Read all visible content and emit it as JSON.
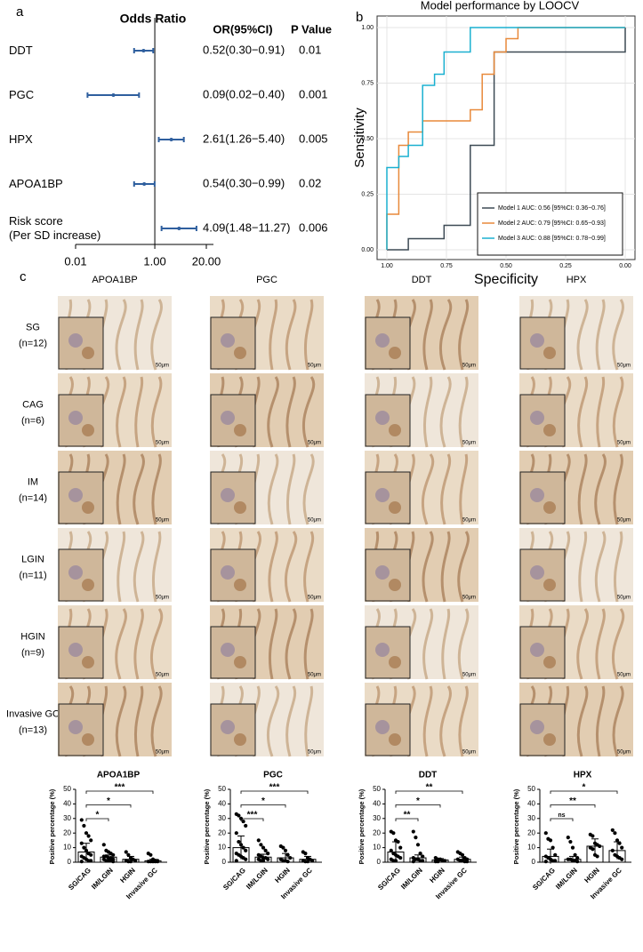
{
  "panel_labels": [
    "a",
    "b",
    "c"
  ],
  "chart_data": [
    {
      "type": "forest",
      "title": "Odds Ratio",
      "columns": [
        "OR(95%CI)",
        "P Value"
      ],
      "categories": [
        "DDT",
        "PGC",
        "HPX",
        "APOA1BP",
        "Risk score\n(Per SD increase)"
      ],
      "values": [
        0.52,
        0.09,
        2.61,
        0.54,
        4.09
      ],
      "ci_low": [
        0.3,
        0.02,
        1.26,
        0.3,
        1.48
      ],
      "ci_high": [
        0.91,
        0.4,
        5.4,
        0.99,
        11.27
      ],
      "value_labels": [
        "0.52(0.30−0.91)",
        "0.09(0.02−0.40)",
        "2.61(1.26−5.40)",
        "0.54(0.30−0.99)",
        "4.09(1.48−11.27)"
      ],
      "p_values": [
        0.01,
        0.001,
        0.005,
        0.02,
        0.006
      ],
      "log_scale": true,
      "reference_line": 1,
      "color": "#2f5f9e",
      "xlim": [
        0.01,
        20
      ],
      "xticks": [
        0.01,
        {
          "value": 1,
          "label": "1.00"
        },
        {
          "value": 20,
          "label": "20.00"
        }
      ]
    },
    {
      "type": "line",
      "title": "Model performance by LOOCV",
      "xlabel": "Specificity",
      "ylabel": "Sensitivity",
      "xlim": [
        1,
        0
      ],
      "ylim": [
        0,
        1
      ],
      "grid": true,
      "legend": "bottom-right",
      "xticks": [
        {
          "value": 1,
          "label": "1.00"
        },
        {
          "value": 0.75,
          "label": "0.75"
        },
        {
          "value": 0.5,
          "label": "0.50"
        },
        {
          "value": 0.25,
          "label": "0.25"
        },
        {
          "value": 0,
          "label": "0.00"
        }
      ],
      "yticks": [
        {
          "value": 0,
          "label": "0.00"
        },
        {
          "value": 0.25,
          "label": "0.25"
        },
        {
          "value": 0.5,
          "label": "0.50"
        },
        {
          "value": 0.75,
          "label": "0.75"
        },
        {
          "value": 1,
          "label": "1.00"
        }
      ],
      "series": [
        {
          "name": "Model 1 AUC: 0.56 [95%CI: 0.36−0.76]",
          "color": "#3d4a54",
          "x": [
            1,
            0.91,
            0.91,
            0.76,
            0.76,
            0.65,
            0.65,
            0.55,
            0.55,
            0,
            0
          ],
          "values": [
            0,
            0,
            0.05,
            0.05,
            0.11,
            0.11,
            0.47,
            0.47,
            0.89,
            0.89,
            1
          ]
        },
        {
          "name": "Model 2 AUC: 0.79 [95%CI: 0.65−0.93]",
          "color": "#e8893a",
          "x": [
            1,
            1,
            0.95,
            0.95,
            0.91,
            0.91,
            0.85,
            0.85,
            0.65,
            0.65,
            0.6,
            0.6,
            0.55,
            0.55,
            0.5,
            0.5,
            0.45,
            0.45,
            0
          ],
          "values": [
            0,
            0.16,
            0.16,
            0.47,
            0.47,
            0.53,
            0.53,
            0.58,
            0.58,
            0.63,
            0.63,
            0.79,
            0.79,
            0.89,
            0.89,
            0.95,
            0.95,
            1,
            1
          ]
        },
        {
          "name": "Model 3 AUC: 0.88 [95%CI: 0.78−0.99]",
          "color": "#1ab0d0",
          "x": [
            1,
            1,
            0.95,
            0.95,
            0.91,
            0.91,
            0.85,
            0.85,
            0.8,
            0.8,
            0.76,
            0.76,
            0.65,
            0.65,
            0
          ],
          "values": [
            0,
            0.37,
            0.37,
            0.42,
            0.42,
            0.47,
            0.47,
            0.74,
            0.74,
            0.79,
            0.79,
            0.89,
            0.89,
            1,
            1
          ]
        }
      ]
    },
    {
      "type": "bar",
      "title": "APOA1BP",
      "ylabel": "Positive percentage (%)",
      "categories": [
        "SG/CAG",
        "IM/LGIN",
        "HGIN",
        "Invasive GC"
      ],
      "values": [
        7,
        3.5,
        2,
        1
      ],
      "errors": [
        6,
        1.5,
        2,
        1
      ],
      "points": [
        [
          29,
          25,
          20,
          18,
          15,
          13,
          10,
          8,
          6,
          5,
          4,
          3,
          2,
          1,
          1,
          0.5
        ],
        [
          12,
          8,
          7,
          6,
          5,
          4,
          4,
          3,
          3,
          2,
          2,
          1,
          1,
          1,
          0.5
        ],
        [
          7,
          5,
          3,
          2,
          1,
          1,
          0.5,
          0.5
        ],
        [
          6,
          5,
          2,
          1,
          1,
          0.5,
          0.5,
          0.5,
          0.5,
          0.5
        ]
      ],
      "ylim": [
        0,
        50
      ],
      "yticks": [
        0,
        10,
        20,
        30,
        40,
        50
      ],
      "significance": [
        {
          "pair": [
            "SG/CAG",
            "Invasive GC"
          ],
          "label": "***"
        },
        {
          "pair": [
            "SG/CAG",
            "HGIN"
          ],
          "label": "*"
        },
        {
          "pair": [
            "SG/CAG",
            "IM/LGIN"
          ],
          "label": "*"
        }
      ]
    },
    {
      "type": "bar",
      "title": "PGC",
      "ylabel": "Positive percentage (%)",
      "categories": [
        "SG/CAG",
        "IM/LGIN",
        "HGIN",
        "Invasive GC"
      ],
      "values": [
        10,
        3.5,
        3,
        2
      ],
      "errors": [
        8,
        2,
        3,
        2
      ],
      "points": [
        [
          33,
          32,
          30,
          28,
          25,
          20,
          14,
          12,
          10,
          8,
          6,
          5,
          4,
          3,
          2,
          1
        ],
        [
          15,
          12,
          10,
          8,
          6,
          5,
          4,
          3,
          3,
          2,
          2,
          1,
          1
        ],
        [
          11,
          10,
          8,
          5,
          3,
          2,
          1,
          1,
          0.5
        ],
        [
          7,
          6,
          3,
          2,
          1,
          1,
          0.5,
          0.5
        ]
      ],
      "ylim": [
        0,
        50
      ],
      "yticks": [
        0,
        10,
        20,
        30,
        40,
        50
      ],
      "significance": [
        {
          "pair": [
            "SG/CAG",
            "Invasive GC"
          ],
          "label": "***"
        },
        {
          "pair": [
            "SG/CAG",
            "HGIN"
          ],
          "label": "*"
        },
        {
          "pair": [
            "SG/CAG",
            "IM/LGIN"
          ],
          "label": "***"
        }
      ]
    },
    {
      "type": "bar",
      "title": "DDT",
      "ylabel": "Positive percentage (%)",
      "categories": [
        "SG/CAG",
        "IM/LGIN",
        "HGIN",
        "Invasive GC"
      ],
      "values": [
        7,
        3,
        1.5,
        2
      ],
      "errors": [
        7,
        2,
        1,
        1.5
      ],
      "points": [
        [
          21,
          20,
          15,
          14,
          10,
          8,
          6,
          5,
          4,
          3,
          2,
          1,
          1
        ],
        [
          21,
          17,
          12,
          6,
          4,
          3,
          2,
          2,
          1,
          1,
          0.5
        ],
        [
          3,
          2,
          2,
          1,
          1,
          0.5,
          0.5
        ],
        [
          7,
          6,
          5,
          3,
          2,
          2,
          1,
          1,
          0.5,
          0.5
        ]
      ],
      "ylim": [
        0,
        50
      ],
      "yticks": [
        0,
        10,
        20,
        30,
        40,
        50
      ],
      "significance": [
        {
          "pair": [
            "SG/CAG",
            "Invasive GC"
          ],
          "label": "**"
        },
        {
          "pair": [
            "SG/CAG",
            "HGIN"
          ],
          "label": "*"
        },
        {
          "pair": [
            "SG/CAG",
            "IM/LGIN"
          ],
          "label": "**"
        }
      ]
    },
    {
      "type": "bar",
      "title": "HPX",
      "ylabel": "Positive percentage (%)",
      "categories": [
        "SG/CAG",
        "IM/LGIN",
        "HGIN",
        "Invasive GC"
      ],
      "values": [
        4,
        2,
        11,
        8
      ],
      "errors": [
        5,
        2,
        5,
        6
      ],
      "points": [
        [
          20,
          16,
          15,
          10,
          5,
          4,
          3,
          2,
          1,
          1,
          0.5
        ],
        [
          17,
          14,
          10,
          5,
          3,
          2,
          2,
          1,
          1,
          0.5
        ],
        [
          19,
          18,
          13,
          12,
          11,
          10,
          9,
          5,
          4
        ],
        [
          22,
          20,
          15,
          13,
          10,
          8,
          5,
          4,
          3,
          2
        ]
      ],
      "ylim": [
        0,
        50
      ],
      "yticks": [
        0,
        10,
        20,
        30,
        40,
        50
      ],
      "significance": [
        {
          "pair": [
            "SG/CAG",
            "Invasive GC"
          ],
          "label": "*"
        },
        {
          "pair": [
            "SG/CAG",
            "HGIN"
          ],
          "label": "**"
        },
        {
          "pair": [
            "SG/CAG",
            "IM/LGIN"
          ],
          "label": "ns"
        }
      ]
    }
  ],
  "ihc": {
    "columns": [
      "APOA1BP",
      "PGC",
      "DDT",
      "HPX"
    ],
    "rows": [
      {
        "label": "SG",
        "n": "(n=12)"
      },
      {
        "label": "CAG",
        "n": "(n=6)"
      },
      {
        "label": "IM",
        "n": "(n=14)"
      },
      {
        "label": "LGIN",
        "n": "(n=11)"
      },
      {
        "label": "HGIN",
        "n": "(n=9)"
      },
      {
        "label": "Invasive GC",
        "n": "(n=13)"
      }
    ],
    "scale_bar": "50μm"
  }
}
